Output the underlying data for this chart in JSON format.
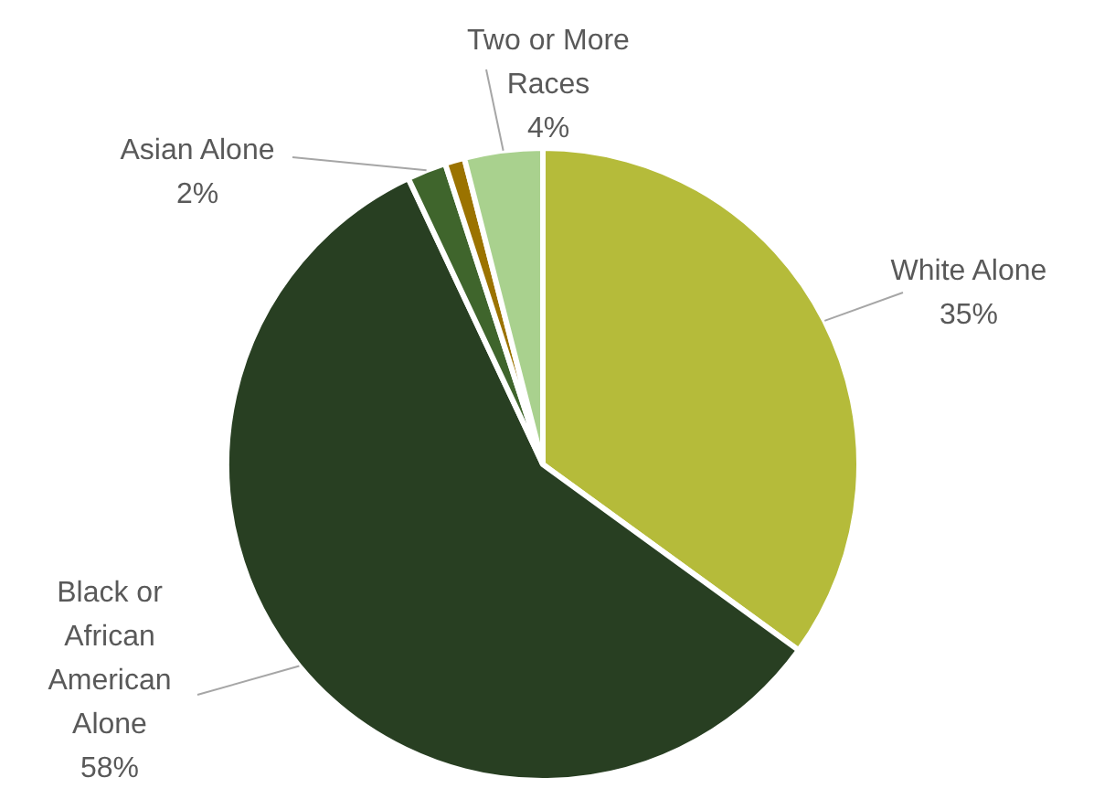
{
  "chart_data": {
    "type": "pie",
    "categories": [
      "White Alone",
      "Black or African American Alone",
      "Asian Alone",
      null,
      "Two or More Races"
    ],
    "values": [
      35,
      58,
      2,
      1,
      4
    ],
    "colors": [
      "#b5bb3a",
      "#283f22",
      "#3f652c",
      "#9b7300",
      "#a9d18e"
    ],
    "value_labels": [
      "35%",
      "58%",
      "2%",
      null,
      "4%"
    ],
    "legend": false
  }
}
